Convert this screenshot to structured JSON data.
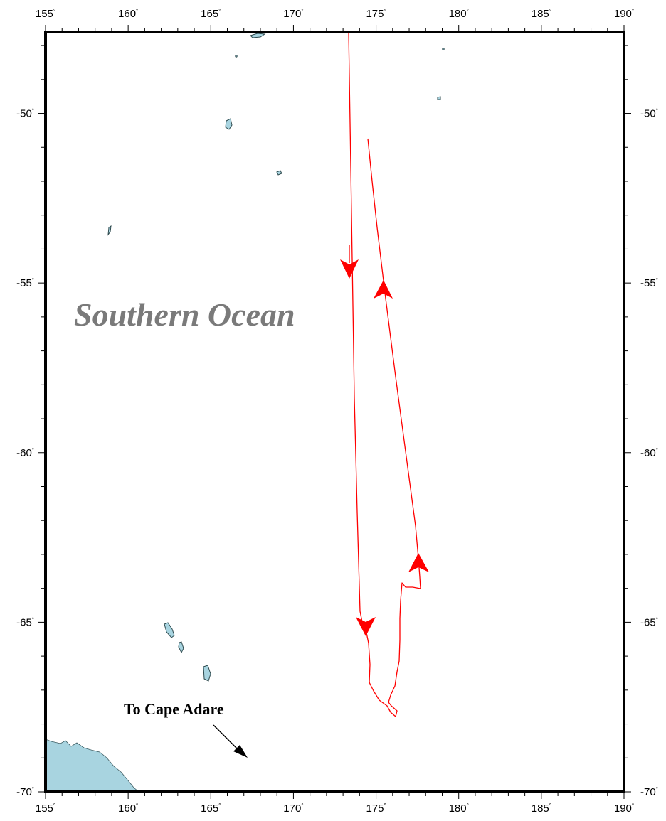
{
  "map": {
    "lon_ticks": [
      "155",
      "160",
      "165",
      "170",
      "175",
      "180",
      "185",
      "190"
    ],
    "lat_ticks": [
      "-50",
      "-55",
      "-60",
      "-65",
      "-70"
    ],
    "degree_symbol": "°",
    "ocean_label": "Southern Ocean",
    "place_label": "To Cape Adare",
    "colors": {
      "track": "#ff0000",
      "land": "#a8d4e0",
      "frame": "#000000",
      "ocean_label": "#7a7a7a",
      "pointer_arrow": "#000000"
    },
    "icons": {
      "direction_arrow": "red-arrowhead",
      "pointer": "black-arrow"
    }
  }
}
